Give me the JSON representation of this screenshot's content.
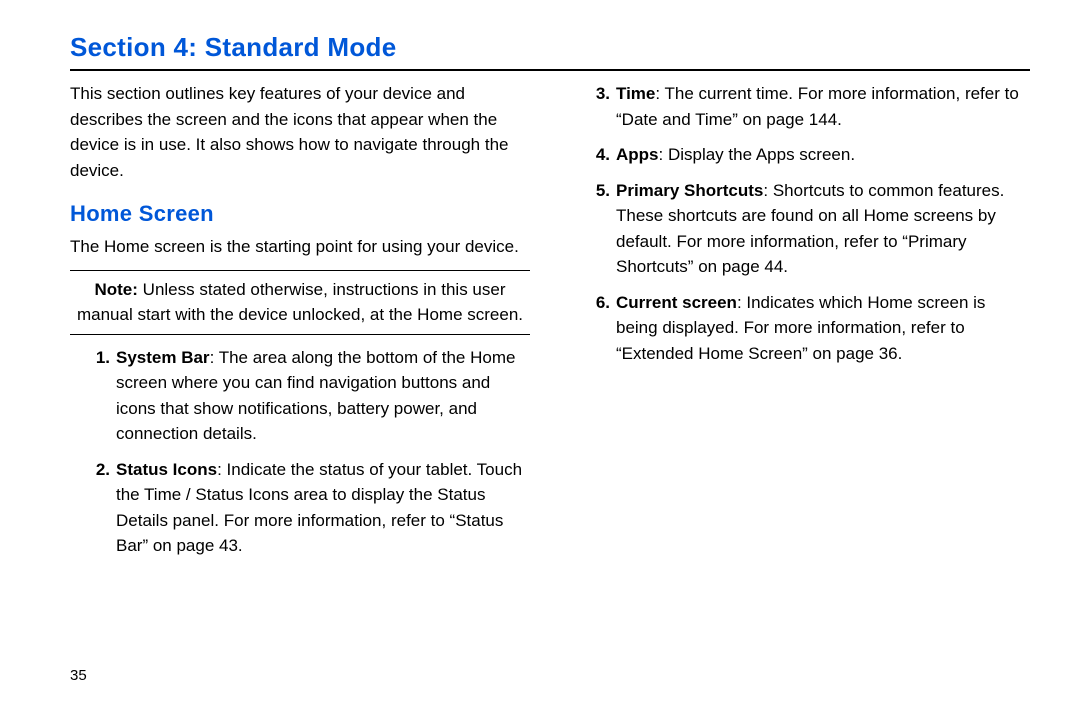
{
  "colors": {
    "heading_blue": "#0057d8",
    "text": "#000000",
    "rule": "#000000",
    "background": "#ffffff"
  },
  "typography": {
    "title_fontsize": 26,
    "subhead_fontsize": 22,
    "body_fontsize": 17,
    "title_weight": 900,
    "bold_weight": 700
  },
  "section_title": "Section 4: Standard Mode",
  "intro": "This section outlines key features of your device and describes the screen and the icons that appear when the device is in use. It also shows how to navigate through the device.",
  "subsection_title": "Home Screen",
  "subsection_lead": "The Home screen is the starting point for using your device.",
  "note_label": "Note:",
  "note_text": " Unless stated otherwise, instructions in this user manual start with the device unlocked, at the Home screen.",
  "items": {
    "i1": {
      "num": "1.",
      "label": "System Bar",
      "text": ": The area along the bottom of the Home screen where you can find navigation buttons and icons that show notifications, battery power, and connection details."
    },
    "i2": {
      "num": "2.",
      "label": "Status Icons",
      "text_a": ": Indicate the status of your tablet. Touch the Time / Status Icons area to display the Status Details panel. For more information, refer to ",
      "ref": "“Status Bar”",
      "text_b": " on page 43."
    },
    "i3": {
      "num": "3.",
      "label": "Time",
      "text_a": ": The current time. For more information, refer to ",
      "ref": "“Date and Time”",
      "text_b": " on page 144."
    },
    "i4": {
      "num": "4.",
      "label": "Apps",
      "text": ": Display the Apps screen."
    },
    "i5": {
      "num": "5.",
      "label": "Primary Shortcuts",
      "text_a": ": Shortcuts to common features. These shortcuts are found on all Home screens by default. For more information, refer to ",
      "ref": "“Primary Shortcuts”",
      "text_b": " on page 44."
    },
    "i6": {
      "num": "6.",
      "label": "Current screen",
      "text_a": ": Indicates which Home screen is being displayed. For more information, refer to ",
      "ref": "“Extended Home Screen”",
      "text_b": " on page 36."
    }
  },
  "page_number": "35"
}
